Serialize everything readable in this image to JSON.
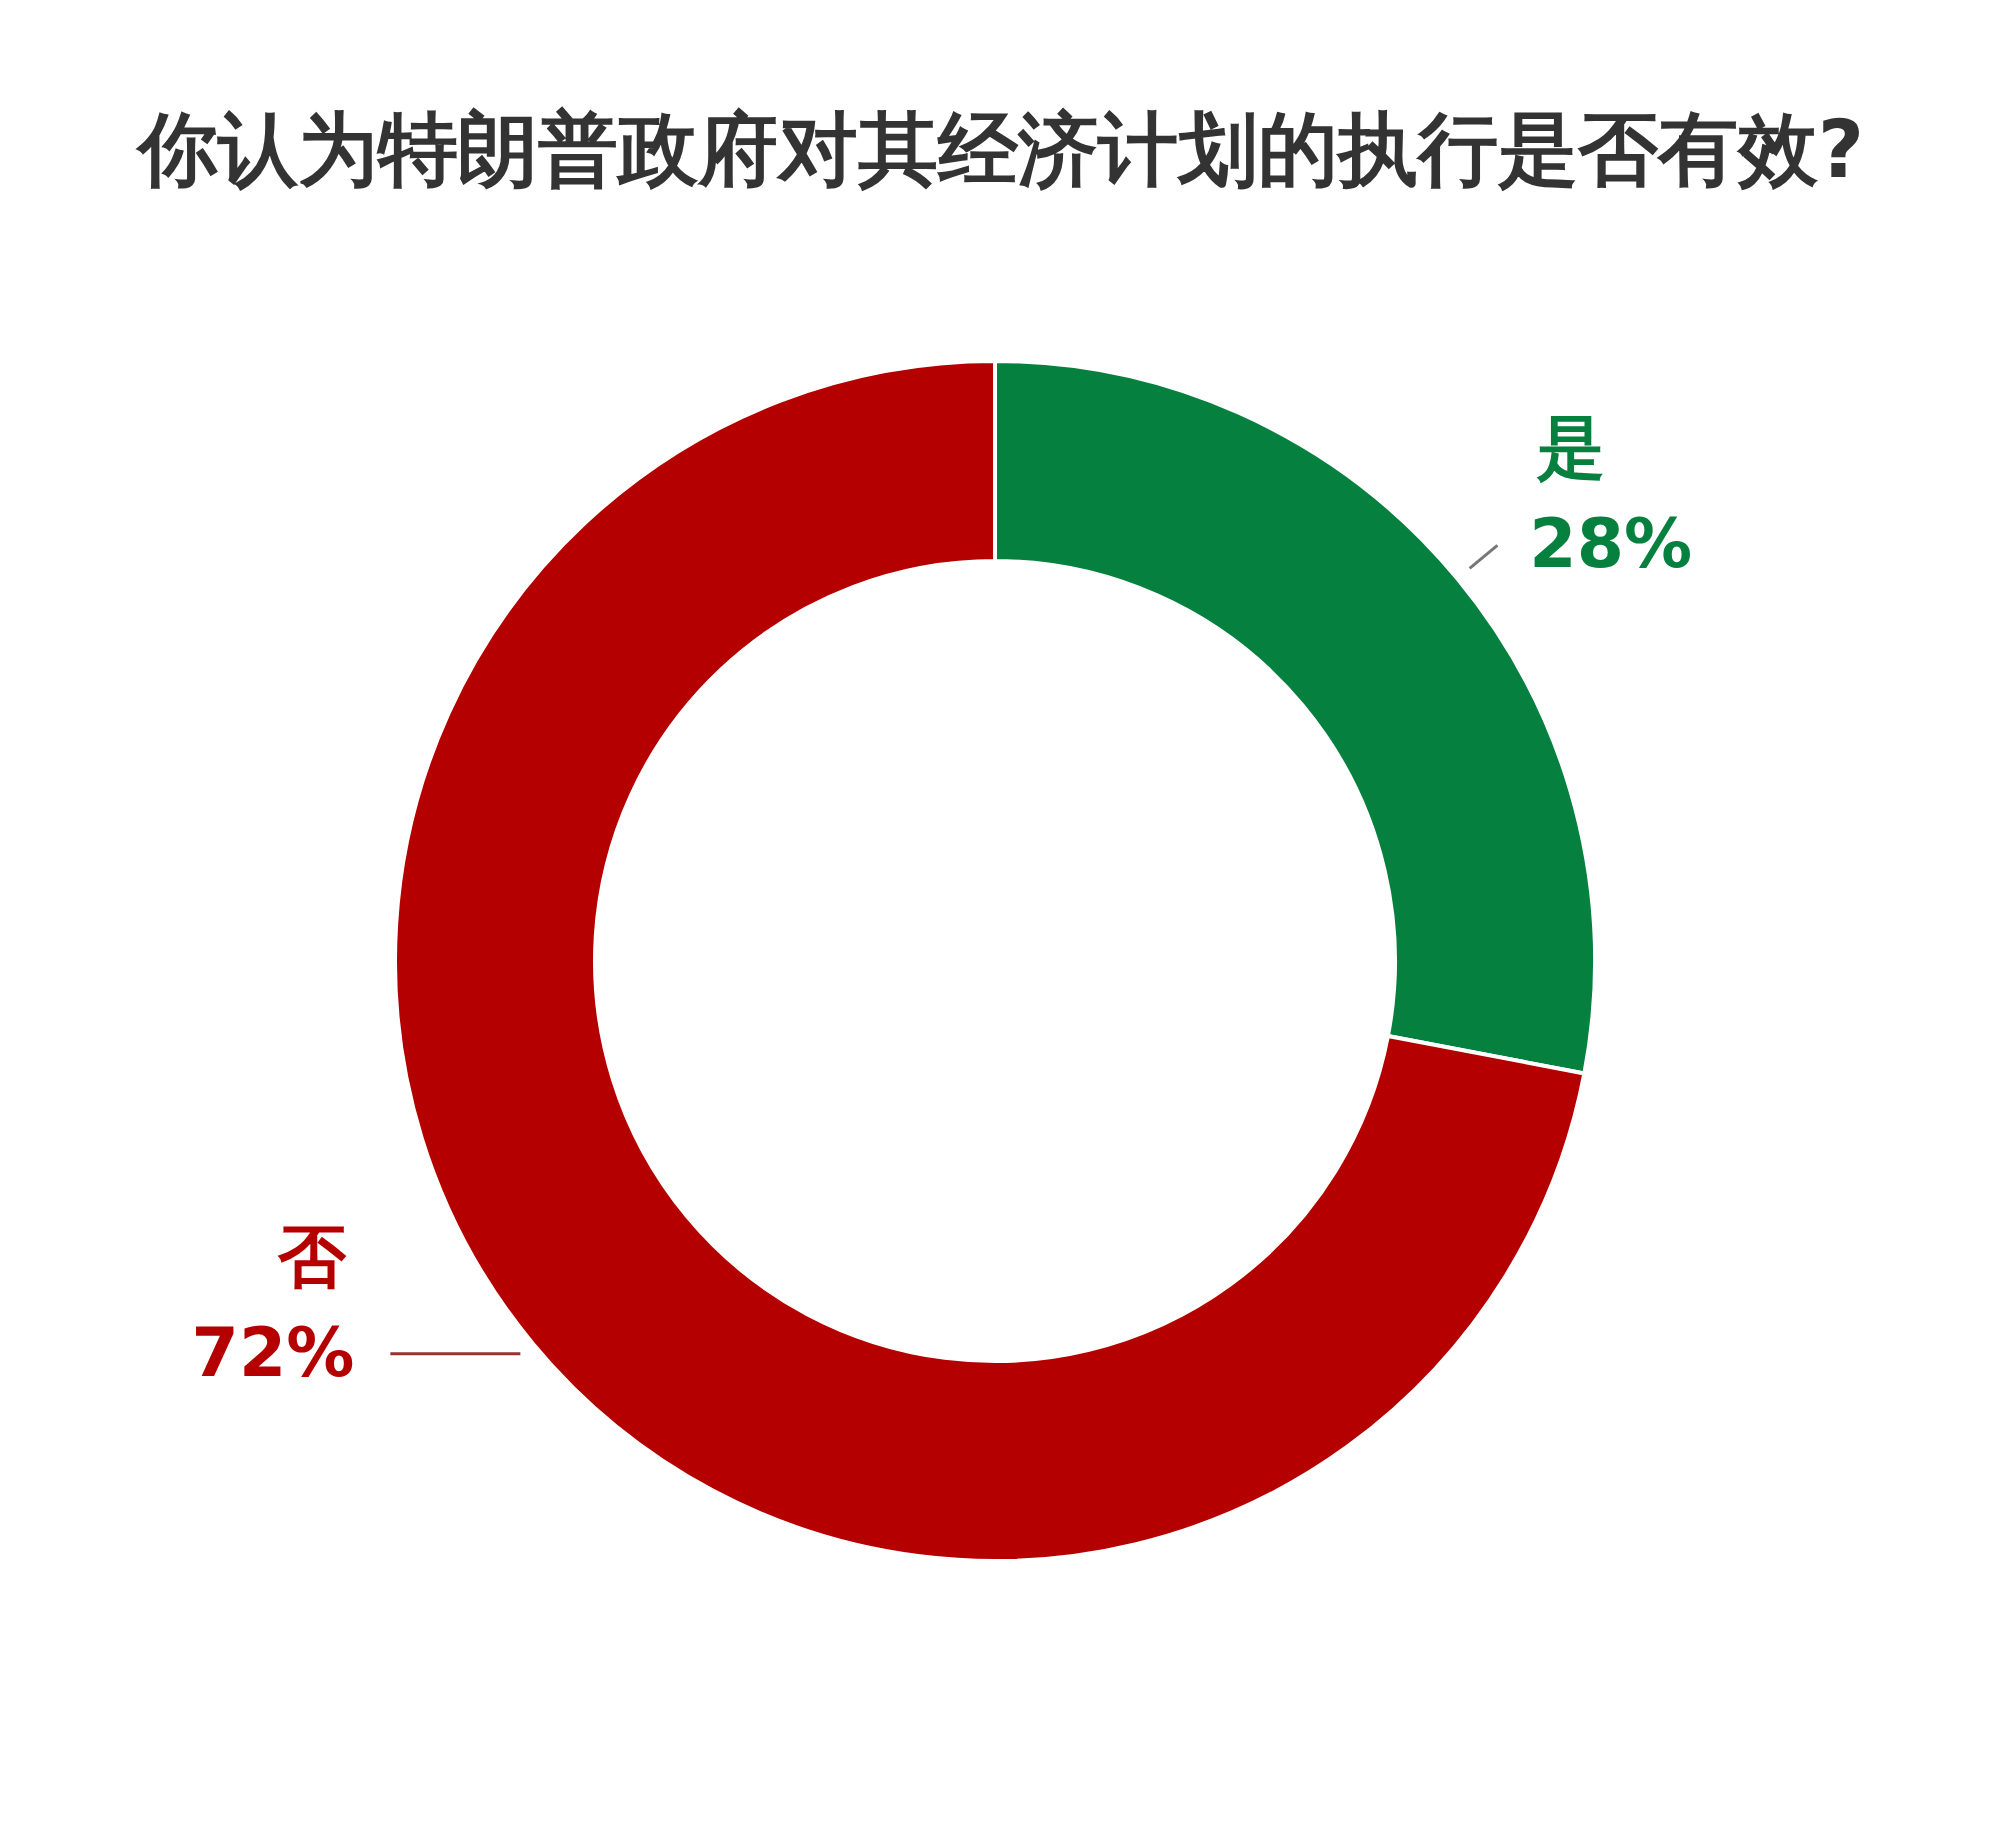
{
  "chart_data": {
    "type": "donut",
    "title": "你认为特朗普政府对其经济计划的执行是否有效?",
    "categories": [
      "是",
      "否"
    ],
    "values": [
      28,
      72
    ],
    "colors": [
      "#06803f",
      "#b50000"
    ],
    "value_labels": [
      "28%",
      "72%"
    ]
  }
}
